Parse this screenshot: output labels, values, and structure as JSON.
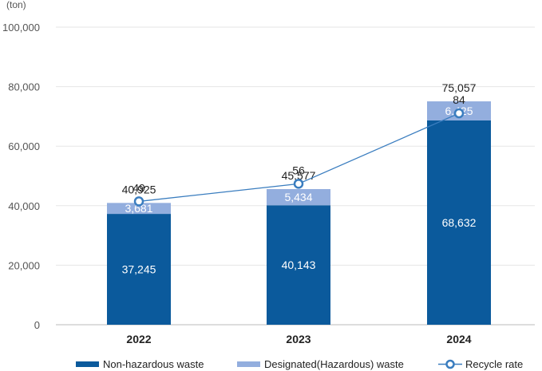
{
  "chart_data": {
    "type": "bar",
    "stacked": true,
    "unit_label": "(ton)",
    "categories": [
      "2022",
      "2023",
      "2024"
    ],
    "y_ticks": [
      "0",
      "20,000",
      "40,000",
      "60,000",
      "80,000",
      "100,000"
    ],
    "y_tick_values": [
      0,
      20000,
      40000,
      60000,
      80000,
      100000
    ],
    "ylim": [
      0,
      100000
    ],
    "series": [
      {
        "name": "Non-hazardous waste",
        "color": "#0b5a9c",
        "values": [
          37245,
          40143,
          68632
        ],
        "labels": [
          "37,245",
          "40,143",
          "68,632"
        ]
      },
      {
        "name": "Designated(Hazardous) waste",
        "color": "#93aede",
        "values": [
          3681,
          5434,
          6425
        ],
        "labels": [
          "3,681",
          "5,434",
          "6,425"
        ]
      }
    ],
    "totals": [
      "40,925",
      "45,577",
      "75,057"
    ],
    "total_values": [
      40925,
      45577,
      75057
    ],
    "line_series": {
      "name": "Recycle rate",
      "color": "#3a7dbf",
      "values": [
        49,
        56,
        84
      ],
      "labels": [
        "49",
        "56",
        "84"
      ]
    },
    "grid": true,
    "legend_position": "bottom"
  }
}
